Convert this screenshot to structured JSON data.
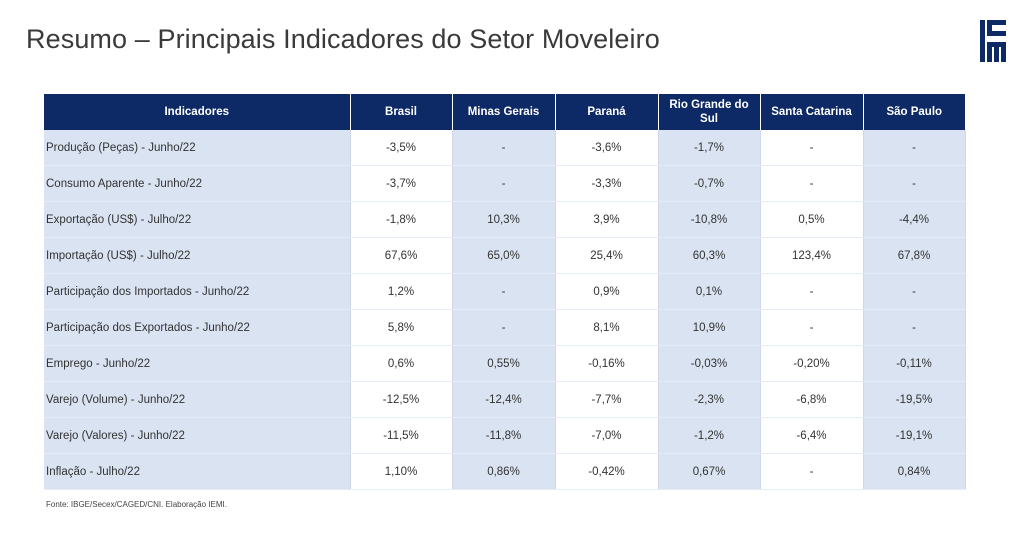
{
  "title": "Resumo – Principais Indicadores do Setor Moveleiro",
  "logo_text": "IEMI",
  "table": {
    "headers": [
      "Indicadores",
      "Brasil",
      "Minas Gerais",
      "Paraná",
      "Rio Grande do Sul",
      "Santa Catarina",
      "São Paulo"
    ],
    "rows": [
      [
        "Produção (Peças) - Junho/22",
        "-3,5%",
        "-",
        "-3,6%",
        "-1,7%",
        "-",
        "-"
      ],
      [
        "Consumo Aparente - Junho/22",
        "-3,7%",
        "-",
        "-3,3%",
        "-0,7%",
        "-",
        "-"
      ],
      [
        "Exportação (US$) - Julho/22",
        "-1,8%",
        "10,3%",
        "3,9%",
        "-10,8%",
        "0,5%",
        "-4,4%"
      ],
      [
        "Importação (US$) - Julho/22",
        "67,6%",
        "65,0%",
        "25,4%",
        "60,3%",
        "123,4%",
        "67,8%"
      ],
      [
        "Participação dos Importados - Junho/22",
        "1,2%",
        "-",
        "0,9%",
        "0,1%",
        "-",
        "-"
      ],
      [
        "Participação dos Exportados - Junho/22",
        "5,8%",
        "-",
        "8,1%",
        "10,9%",
        "-",
        "-"
      ],
      [
        "Emprego - Junho/22",
        "0,6%",
        "0,55%",
        "-0,16%",
        "-0,03%",
        "-0,20%",
        "-0,11%"
      ],
      [
        "Varejo (Volume) - Junho/22",
        "-12,5%",
        "-12,4%",
        "-7,7%",
        "-2,3%",
        "-6,8%",
        "-19,5%"
      ],
      [
        "Varejo (Valores) - Junho/22",
        "-11,5%",
        "-11,8%",
        "-7,0%",
        "-1,2%",
        "-6,4%",
        "-19,1%"
      ],
      [
        "Inflação - Julho/22",
        "1,10%",
        "0,86%",
        "-0,42%",
        "0,67%",
        "-",
        "0,84%"
      ]
    ]
  },
  "source": "Fonte: IBGE/Secex/CAGED/CNI. Elaboração IEMI.",
  "colors": {
    "header_bg": "#0d2a66",
    "shaded_cell": "#d9e3f2",
    "title_text": "#3a3a3a"
  }
}
